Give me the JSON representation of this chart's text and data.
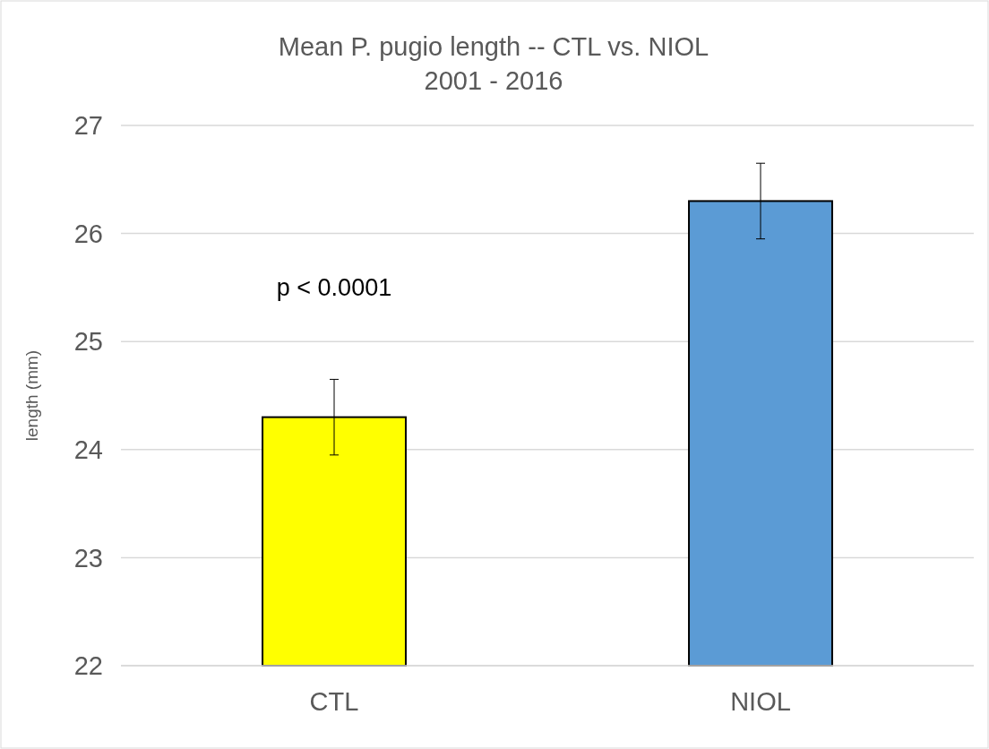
{
  "chart_data": {
    "type": "bar",
    "title": "Mean P. pugio length -- CTL vs. NIOL\n2001 - 2016",
    "ylabel": "length (mm)",
    "categories": [
      "CTL",
      "NIOL"
    ],
    "values": [
      24.3,
      26.3
    ],
    "colors": [
      "#ffff00",
      "#5b9bd5"
    ],
    "errors": [
      0.35,
      0.35
    ],
    "ylim": [
      22,
      27
    ],
    "yticks": [
      22,
      23,
      24,
      25,
      26,
      27
    ],
    "grid": "y",
    "annotations": [
      "p < 0.0001"
    ]
  }
}
